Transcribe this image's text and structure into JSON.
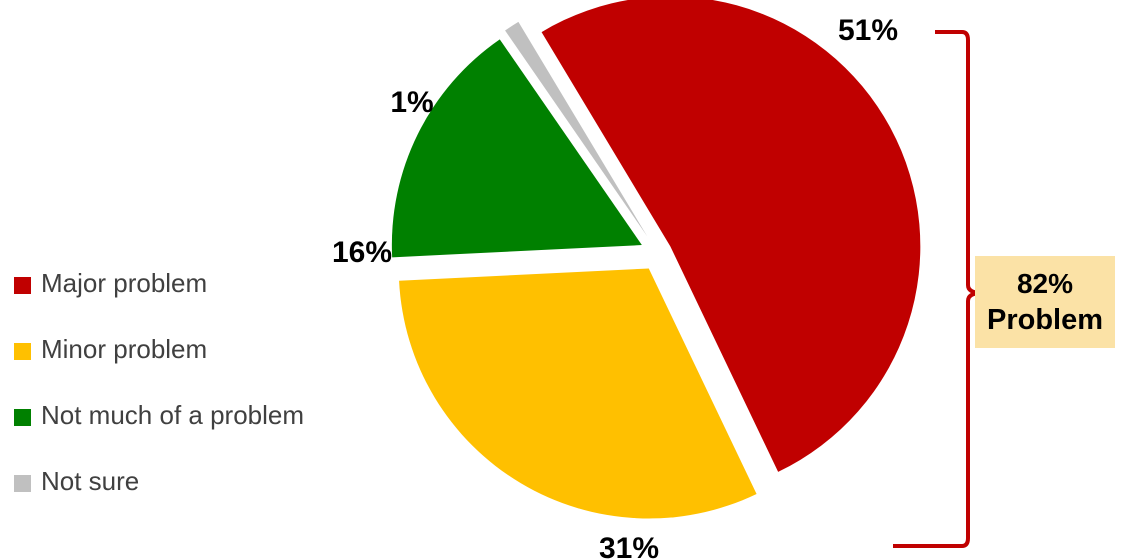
{
  "chart_data": {
    "type": "pie",
    "categories": [
      "Major problem",
      "Minor problem",
      "Not much of a problem",
      "Not sure"
    ],
    "values": [
      51,
      31,
      16,
      1
    ],
    "value_labels": [
      "51%",
      "31%",
      "16%",
      "1%"
    ],
    "colors": [
      "#c00000",
      "#ffc000",
      "#008000",
      "#c0c0c0"
    ],
    "legend_position": "left",
    "exploded": true,
    "bracket": {
      "covers": [
        "Major problem",
        "Minor problem"
      ],
      "value_label": "82%",
      "text": "Problem",
      "color": "#c00000",
      "box_color": "#fbe2a6"
    }
  }
}
